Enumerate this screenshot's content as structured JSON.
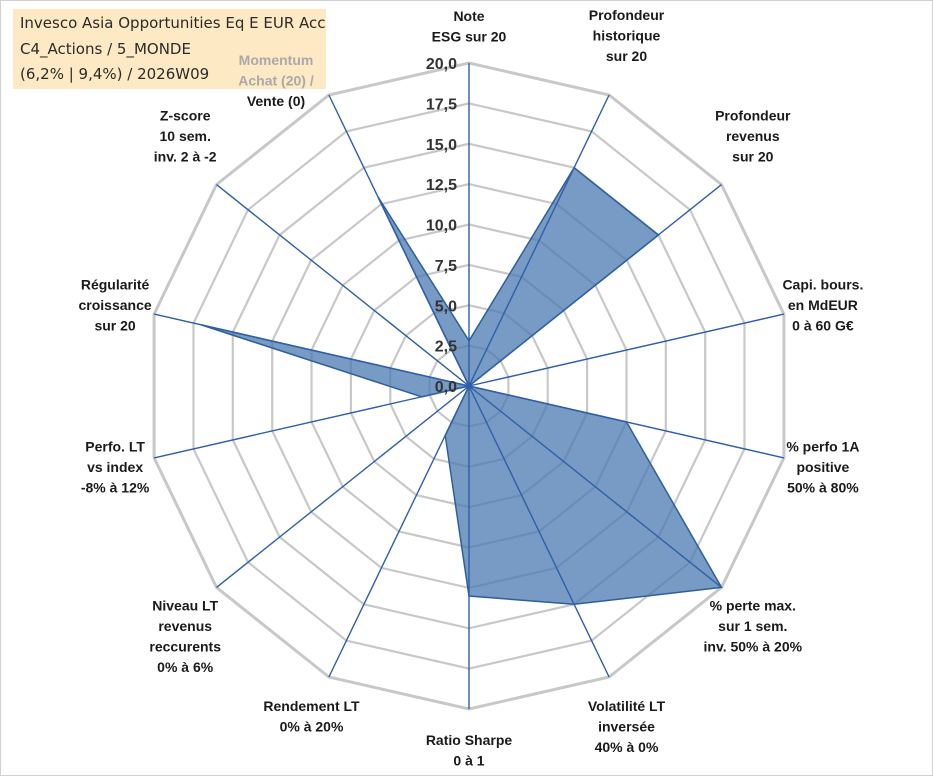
{
  "title": {
    "line1": "Invesco Asia Opportunities Eq E EUR Acc",
    "line2": "C4_Actions / 5_MONDE",
    "line3": "(6,2% | 9,4%) / 2026W09"
  },
  "chart_data": {
    "type": "radar",
    "range": [
      0,
      20
    ],
    "ticks": [
      "0,0",
      "2,5",
      "5,0",
      "7,5",
      "10,0",
      "12,5",
      "15,0",
      "17,5",
      "20,0"
    ],
    "axes": [
      {
        "lines": [
          "Note",
          "ESG sur 20"
        ],
        "value": 2.8
      },
      {
        "lines": [
          "Profondeur",
          "historique",
          "sur 20"
        ],
        "value": 15.0
      },
      {
        "lines": [
          "Profondeur",
          "revenus",
          "sur 20"
        ],
        "value": 15.0
      },
      {
        "lines": [
          "Capi. bours.",
          "en MdEUR",
          "0 à 60 G€"
        ],
        "value": 0.0
      },
      {
        "lines": [
          "% perfo 1A",
          "positive",
          "50% à 80%"
        ],
        "value": 10.0
      },
      {
        "lines": [
          "% perte max.",
          "sur 1 sem.",
          "inv. 50% à 20%"
        ],
        "value": 20.0
      },
      {
        "lines": [
          "Volatilité LT",
          "inversée",
          "40% à 0%"
        ],
        "value": 15.0
      },
      {
        "lines": [
          "Ratio Sharpe",
          "0 à 1"
        ],
        "value": 13.0
      },
      {
        "lines": [
          "Rendement LT",
          "0% à 20%"
        ],
        "value": 3.4
      },
      {
        "lines": [
          "Niveau LT",
          "revenus",
          "reccurents",
          "0% à 6%"
        ],
        "value": 0.0
      },
      {
        "lines": [
          "Perfo. LT",
          "vs index",
          "-8% à 12%"
        ],
        "value": 3.0
      },
      {
        "lines": [
          "Régularité",
          "croissance",
          "sur 20"
        ],
        "value": 17.0
      },
      {
        "lines": [
          "Z-score",
          "10 sem.",
          "inv. 2 à -2"
        ],
        "value": 0.0
      },
      {
        "lines": [
          "Momentum",
          "Achat (20) /",
          "Vente (0)"
        ],
        "value": 13.0
      }
    ],
    "colors": {
      "fill": "#4a79b0",
      "stroke": "#2f5f9a",
      "axis": "#2e5fa8",
      "grid": "#c8c8c8",
      "muted_label": "#a9a9a9"
    }
  }
}
